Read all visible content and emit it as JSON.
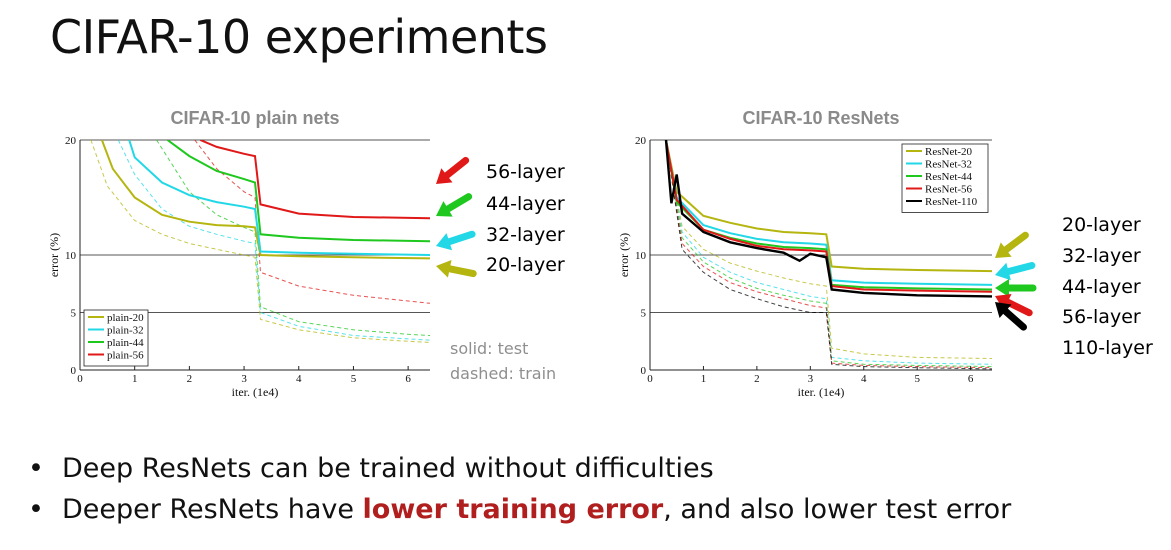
{
  "slide": {
    "title": "CIFAR-10 experiments",
    "bullets": [
      {
        "pre": "Deep ResNets can be trained without difficulties",
        "highlight": "",
        "post": ""
      },
      {
        "pre": "Deeper ResNets have ",
        "highlight": "lower training error",
        "post": ", and also lower test error"
      }
    ],
    "highlight_color": "#b01e1e"
  },
  "chart_data": [
    {
      "type": "line",
      "title": "CIFAR-10 plain nets",
      "xlabel": "iter. (1e4)",
      "ylabel": "error (%)",
      "xlim": [
        0,
        6.4
      ],
      "ylim": [
        0,
        20
      ],
      "xticks": [
        "0",
        "1",
        "2",
        "3",
        "4",
        "5",
        "6"
      ],
      "yticks": [
        "0",
        "5",
        "10",
        "20"
      ],
      "hlines": [
        5,
        10
      ],
      "legend_position": "bottom-left",
      "series": [
        {
          "name": "plain-20",
          "color": "#b5b50f",
          "test": [
            [
              0.4,
              20
            ],
            [
              0.6,
              17.5
            ],
            [
              1.0,
              15
            ],
            [
              1.5,
              13.5
            ],
            [
              2.0,
              12.9
            ],
            [
              2.5,
              12.6
            ],
            [
              3.0,
              12.5
            ],
            [
              3.2,
              12.4
            ],
            [
              3.3,
              10.0
            ],
            [
              4.0,
              9.9
            ],
            [
              5.0,
              9.8
            ],
            [
              6.4,
              9.7
            ]
          ],
          "train": [
            [
              0.2,
              20
            ],
            [
              0.5,
              16
            ],
            [
              1.0,
              13
            ],
            [
              1.5,
              11.8
            ],
            [
              2.0,
              11.0
            ],
            [
              2.5,
              10.5
            ],
            [
              3.0,
              10.0
            ],
            [
              3.2,
              9.8
            ],
            [
              3.3,
              4.4
            ],
            [
              4.0,
              3.5
            ],
            [
              5.0,
              2.8
            ],
            [
              6.0,
              2.5
            ],
            [
              6.4,
              2.4
            ]
          ]
        },
        {
          "name": "plain-32",
          "color": "#22d8e6",
          "test": [
            [
              0.9,
              20
            ],
            [
              1.0,
              18.5
            ],
            [
              1.5,
              16.3
            ],
            [
              2.0,
              15.2
            ],
            [
              2.5,
              14.6
            ],
            [
              3.0,
              14.2
            ],
            [
              3.2,
              14.0
            ],
            [
              3.3,
              10.3
            ],
            [
              4.0,
              10.2
            ],
            [
              5.0,
              10.1
            ],
            [
              6.4,
              10.0
            ]
          ],
          "train": [
            [
              0.7,
              20
            ],
            [
              1.0,
              17
            ],
            [
              1.5,
              14
            ],
            [
              2.0,
              12.5
            ],
            [
              2.5,
              11.8
            ],
            [
              3.0,
              11.2
            ],
            [
              3.2,
              11.0
            ],
            [
              3.3,
              5.0
            ],
            [
              4.0,
              3.8
            ],
            [
              5.0,
              3.0
            ],
            [
              6.0,
              2.7
            ],
            [
              6.4,
              2.6
            ]
          ]
        },
        {
          "name": "plain-44",
          "color": "#1ec81e",
          "test": [
            [
              1.6,
              20
            ],
            [
              2.0,
              18.6
            ],
            [
              2.5,
              17.3
            ],
            [
              3.0,
              16.6
            ],
            [
              3.2,
              16.3
            ],
            [
              3.3,
              11.8
            ],
            [
              4.0,
              11.5
            ],
            [
              5.0,
              11.3
            ],
            [
              6.4,
              11.2
            ]
          ],
          "train": [
            [
              1.4,
              20
            ],
            [
              2.0,
              15.5
            ],
            [
              2.5,
              13.5
            ],
            [
              3.0,
              12.4
            ],
            [
              3.2,
              12.0
            ],
            [
              3.3,
              5.5
            ],
            [
              4.0,
              4.2
            ],
            [
              5.0,
              3.5
            ],
            [
              6.0,
              3.1
            ],
            [
              6.4,
              3.0
            ]
          ]
        },
        {
          "name": "plain-56",
          "color": "#e01818",
          "test": [
            [
              2.2,
              20
            ],
            [
              2.5,
              19.4
            ],
            [
              3.0,
              18.8
            ],
            [
              3.2,
              18.6
            ],
            [
              3.3,
              14.4
            ],
            [
              4.0,
              13.6
            ],
            [
              5.0,
              13.3
            ],
            [
              6.4,
              13.2
            ]
          ],
          "train": [
            [
              2.1,
              20
            ],
            [
              2.5,
              17.5
            ],
            [
              3.0,
              15.5
            ],
            [
              3.2,
              15.0
            ],
            [
              3.3,
              8.5
            ],
            [
              4.0,
              7.3
            ],
            [
              5.0,
              6.5
            ],
            [
              6.0,
              6.0
            ],
            [
              6.4,
              5.8
            ]
          ]
        }
      ]
    },
    {
      "type": "line",
      "title": "CIFAR-10 ResNets",
      "xlabel": "iter. (1e4)",
      "ylabel": "error (%)",
      "xlim": [
        0,
        6.4
      ],
      "ylim": [
        0,
        20
      ],
      "xticks": [
        "0",
        "1",
        "2",
        "3",
        "4",
        "5",
        "6"
      ],
      "yticks": [
        "0",
        "5",
        "10",
        "20"
      ],
      "hlines": [
        5,
        10
      ],
      "legend_position": "top-right",
      "series": [
        {
          "name": "ResNet-20",
          "color": "#b5b50f",
          "test": [
            [
              0.3,
              20
            ],
            [
              0.5,
              15.5
            ],
            [
              1.0,
              13.4
            ],
            [
              1.5,
              12.8
            ],
            [
              2.0,
              12.3
            ],
            [
              2.5,
              12.0
            ],
            [
              3.0,
              11.9
            ],
            [
              3.3,
              11.8
            ],
            [
              3.4,
              9.0
            ],
            [
              4.0,
              8.8
            ],
            [
              5.0,
              8.7
            ],
            [
              6.4,
              8.6
            ]
          ],
          "train": [
            [
              0.3,
              20
            ],
            [
              0.6,
              12.5
            ],
            [
              1.0,
              10.5
            ],
            [
              1.5,
              9.3
            ],
            [
              2.0,
              8.6
            ],
            [
              2.5,
              8.0
            ],
            [
              3.0,
              7.5
            ],
            [
              3.3,
              7.3
            ],
            [
              3.4,
              1.9
            ],
            [
              4.0,
              1.4
            ],
            [
              5.0,
              1.1
            ],
            [
              6.4,
              1.0
            ]
          ]
        },
        {
          "name": "ResNet-32",
          "color": "#22d8e6",
          "test": [
            [
              0.3,
              20
            ],
            [
              0.5,
              15.0
            ],
            [
              1.0,
              12.6
            ],
            [
              1.5,
              11.9
            ],
            [
              2.0,
              11.4
            ],
            [
              2.5,
              11.1
            ],
            [
              3.0,
              11.0
            ],
            [
              3.3,
              10.9
            ],
            [
              3.4,
              7.8
            ],
            [
              4.0,
              7.6
            ],
            [
              5.0,
              7.5
            ],
            [
              6.4,
              7.4
            ]
          ],
          "train": [
            [
              0.3,
              20
            ],
            [
              0.6,
              12.0
            ],
            [
              1.0,
              9.8
            ],
            [
              1.5,
              8.5
            ],
            [
              2.0,
              7.6
            ],
            [
              2.5,
              7.0
            ],
            [
              3.0,
              6.4
            ],
            [
              3.3,
              6.2
            ],
            [
              3.4,
              1.1
            ],
            [
              4.0,
              0.8
            ],
            [
              5.0,
              0.6
            ],
            [
              6.4,
              0.5
            ]
          ]
        },
        {
          "name": "ResNet-44",
          "color": "#1ec81e",
          "test": [
            [
              0.3,
              20
            ],
            [
              0.5,
              14.6
            ],
            [
              1.0,
              12.2
            ],
            [
              1.5,
              11.5
            ],
            [
              2.0,
              11.0
            ],
            [
              2.5,
              10.7
            ],
            [
              3.0,
              10.6
            ],
            [
              3.3,
              10.5
            ],
            [
              3.4,
              7.4
            ],
            [
              4.0,
              7.2
            ],
            [
              5.0,
              7.1
            ],
            [
              6.4,
              7.0
            ]
          ],
          "train": [
            [
              0.3,
              20
            ],
            [
              0.6,
              11.5
            ],
            [
              1.0,
              9.4
            ],
            [
              1.5,
              8.0
            ],
            [
              2.0,
              7.1
            ],
            [
              2.5,
              6.5
            ],
            [
              3.0,
              6.0
            ],
            [
              3.3,
              5.8
            ],
            [
              3.4,
              0.8
            ],
            [
              4.0,
              0.5
            ],
            [
              5.0,
              0.4
            ],
            [
              6.4,
              0.3
            ]
          ]
        },
        {
          "name": "ResNet-56",
          "color": "#e01818",
          "test": [
            [
              0.3,
              20
            ],
            [
              0.5,
              14.8
            ],
            [
              1.0,
              12.2
            ],
            [
              1.5,
              11.4
            ],
            [
              2.0,
              10.8
            ],
            [
              2.5,
              10.5
            ],
            [
              3.0,
              10.4
            ],
            [
              3.3,
              10.3
            ],
            [
              3.4,
              7.3
            ],
            [
              4.0,
              7.0
            ],
            [
              5.0,
              6.9
            ],
            [
              6.4,
              6.8
            ]
          ],
          "train": [
            [
              0.3,
              20
            ],
            [
              0.6,
              11.0
            ],
            [
              1.0,
              9.0
            ],
            [
              1.5,
              7.6
            ],
            [
              2.0,
              6.8
            ],
            [
              2.5,
              6.2
            ],
            [
              3.0,
              5.6
            ],
            [
              3.3,
              5.4
            ],
            [
              3.4,
              0.6
            ],
            [
              4.0,
              0.4
            ],
            [
              5.0,
              0.3
            ],
            [
              6.4,
              0.2
            ]
          ]
        },
        {
          "name": "ResNet-110",
          "color": "#000000",
          "test": [
            [
              0.3,
              20
            ],
            [
              0.4,
              14.5
            ],
            [
              0.5,
              17.0
            ],
            [
              0.6,
              13.6
            ],
            [
              1.0,
              12.0
            ],
            [
              1.5,
              11.1
            ],
            [
              2.0,
              10.6
            ],
            [
              2.5,
              10.2
            ],
            [
              2.8,
              9.5
            ],
            [
              3.0,
              10.1
            ],
            [
              3.3,
              9.8
            ],
            [
              3.4,
              7.0
            ],
            [
              4.0,
              6.7
            ],
            [
              5.0,
              6.5
            ],
            [
              6.4,
              6.4
            ]
          ],
          "train": [
            [
              0.3,
              20
            ],
            [
              0.6,
              10.5
            ],
            [
              1.0,
              8.5
            ],
            [
              1.5,
              7.0
            ],
            [
              2.0,
              6.2
            ],
            [
              2.5,
              5.5
            ],
            [
              3.0,
              5.0
            ],
            [
              3.3,
              5.0
            ],
            [
              3.4,
              0.5
            ],
            [
              4.0,
              0.3
            ],
            [
              5.0,
              0.2
            ],
            [
              6.4,
              0.1
            ]
          ]
        }
      ]
    }
  ],
  "annotations": {
    "plain_arrows": [
      {
        "label": "56-layer",
        "color": "#e01818"
      },
      {
        "label": "44-layer",
        "color": "#1ec81e"
      },
      {
        "label": "32-layer",
        "color": "#22d8e6"
      },
      {
        "label": "20-layer",
        "color": "#b5b50f"
      }
    ],
    "resnet_arrows": [
      {
        "label": "20-layer",
        "color": "#b5b50f"
      },
      {
        "label": "32-layer",
        "color": "#22d8e6"
      },
      {
        "label": "44-layer",
        "color": "#1ec81e"
      },
      {
        "label": "56-layer",
        "color": "#e01818"
      },
      {
        "label": "110-layer",
        "color": "#000000"
      }
    ],
    "notes": [
      "solid: test",
      "dashed: train"
    ]
  }
}
